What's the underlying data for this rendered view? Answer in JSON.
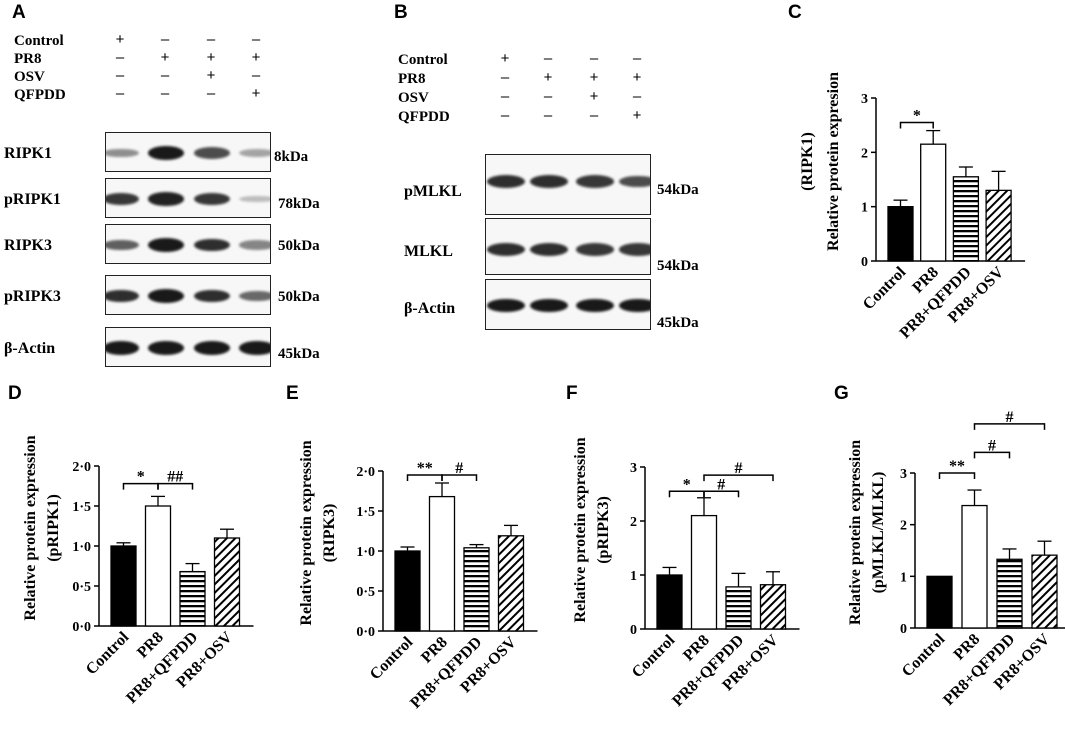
{
  "panels": {
    "A": {
      "letter": "A",
      "conditions": [
        {
          "label": "Control",
          "signs": [
            "+",
            "–",
            "–",
            "–"
          ]
        },
        {
          "label": "PR8",
          "signs": [
            "–",
            "+",
            "+",
            "+"
          ]
        },
        {
          "label": "OSV",
          "signs": [
            "–",
            "–",
            "+",
            "–"
          ]
        },
        {
          "label": "QFPDD",
          "signs": [
            "–",
            "–",
            "–",
            "+"
          ]
        }
      ],
      "blots": [
        {
          "label": "RIPK1",
          "size": "8kDa",
          "intensity": [
            0.35,
            0.95,
            0.7,
            0.25
          ]
        },
        {
          "label": "pRIPK1",
          "size": "78kDa",
          "intensity": [
            0.8,
            0.9,
            0.8,
            0.12
          ]
        },
        {
          "label": "RIPK3",
          "size": "50kDa",
          "intensity": [
            0.6,
            0.95,
            0.85,
            0.4
          ]
        },
        {
          "label": "pRIPK3",
          "size": "50kDa",
          "intensity": [
            0.85,
            0.95,
            0.85,
            0.55
          ]
        },
        {
          "label": "β-Actin",
          "size": "45kDa",
          "intensity": [
            0.95,
            0.95,
            0.95,
            0.95
          ]
        }
      ]
    },
    "B": {
      "letter": "B",
      "conditions": [
        {
          "label": "Control",
          "signs": [
            "+",
            "–",
            "–",
            "–"
          ]
        },
        {
          "label": "PR8",
          "signs": [
            "–",
            "+",
            "+",
            "+"
          ]
        },
        {
          "label": "OSV",
          "signs": [
            "–",
            "–",
            "+",
            "–"
          ]
        },
        {
          "label": "QFPDD",
          "signs": [
            "–",
            "–",
            "–",
            "+"
          ]
        }
      ],
      "blots": [
        {
          "label": "pMLKL",
          "size": "54kDa",
          "intensity": [
            0.85,
            0.85,
            0.8,
            0.7
          ]
        },
        {
          "label": "MLKL",
          "size": "54kDa",
          "intensity": [
            0.85,
            0.85,
            0.8,
            0.8
          ]
        },
        {
          "label": "β-Actin",
          "size": "45kDa",
          "intensity": [
            0.95,
            0.95,
            0.95,
            0.95
          ]
        }
      ]
    }
  },
  "chart_data": [
    {
      "panel": "C",
      "type": "bar",
      "categories": [
        "Control",
        "PR8",
        "PR8+QFPDD",
        "PR8+OSV"
      ],
      "values": [
        1.0,
        2.15,
        1.55,
        1.3
      ],
      "errors": [
        0.12,
        0.25,
        0.18,
        0.35
      ],
      "ylabel": "Relative protein expresion",
      "ylabel2": "(RIPK1)",
      "ylim": [
        0,
        3
      ],
      "ticks": [
        "0",
        "1",
        "2",
        "3"
      ],
      "annotations": [
        {
          "from": 0,
          "to": 1,
          "text": "*",
          "level": 2.55
        }
      ]
    },
    {
      "panel": "D",
      "type": "bar",
      "categories": [
        "Control",
        "PR8",
        "PR8+QFPDD",
        "PR8+OSV"
      ],
      "values": [
        1.0,
        1.5,
        0.68,
        1.1
      ],
      "errors": [
        0.04,
        0.12,
        0.1,
        0.11
      ],
      "ylabel": "Relative protein expression",
      "ylabel2": "(pRIPK1)",
      "ylim": [
        0,
        2
      ],
      "ticks": [
        "0·0",
        "0·5",
        "1·0",
        "1·5",
        "2·0"
      ],
      "annotations": [
        {
          "from": 0,
          "to": 1,
          "text": "*",
          "level": 1.78
        },
        {
          "from": 1,
          "to": 2,
          "text": "##",
          "level": 1.78
        }
      ]
    },
    {
      "panel": "E",
      "type": "bar",
      "categories": [
        "Control",
        "PR8",
        "PR8+QFPDD",
        "PR8+OSV"
      ],
      "values": [
        1.0,
        1.68,
        1.04,
        1.19
      ],
      "errors": [
        0.05,
        0.17,
        0.04,
        0.13
      ],
      "ylabel": "Relative protein expression",
      "ylabel2": "(RIPK3)",
      "ylim": [
        0,
        2
      ],
      "ticks": [
        "0·0",
        "0·5",
        "1·0",
        "1·5",
        "2·0"
      ],
      "annotations": [
        {
          "from": 0,
          "to": 1,
          "text": "**",
          "level": 1.95
        },
        {
          "from": 1,
          "to": 2,
          "text": "#",
          "level": 1.95
        }
      ]
    },
    {
      "panel": "F",
      "type": "bar",
      "categories": [
        "Control",
        "PR8",
        "PR8+QFPDD",
        "PR8+OSV"
      ],
      "values": [
        1.0,
        2.1,
        0.78,
        0.82
      ],
      "errors": [
        0.14,
        0.33,
        0.25,
        0.24
      ],
      "ylabel": "Relative protein expression",
      "ylabel2": "(pRIPK3)",
      "ylim": [
        0,
        3
      ],
      "ticks": [
        "0",
        "1",
        "2",
        "3"
      ],
      "annotations": [
        {
          "from": 0,
          "to": 1,
          "text": "*",
          "level": 2.55
        },
        {
          "from": 1,
          "to": 2,
          "text": "#",
          "level": 2.55
        },
        {
          "from": 1,
          "to": 3,
          "text": "#",
          "level": 2.85
        }
      ]
    },
    {
      "panel": "G",
      "type": "bar",
      "categories": [
        "Control",
        "PR8",
        "PR8+QFPDD",
        "PR8+OSV"
      ],
      "values": [
        1.0,
        2.37,
        1.33,
        1.41
      ],
      "errors": [
        0.0,
        0.3,
        0.2,
        0.27
      ],
      "ylabel": "Relative protein expression",
      "ylabel2": "(pMLKL/MLKL)",
      "ylim": [
        0,
        3
      ],
      "ticks": [
        "0",
        "1",
        "2",
        "3"
      ],
      "annotations": [
        {
          "from": 0,
          "to": 1,
          "text": "**",
          "level": 3.0
        },
        {
          "from": 1,
          "to": 2,
          "text": "#",
          "level": 3.4
        },
        {
          "from": 1,
          "to": 3,
          "text": "#",
          "level": 3.95
        }
      ]
    }
  ]
}
